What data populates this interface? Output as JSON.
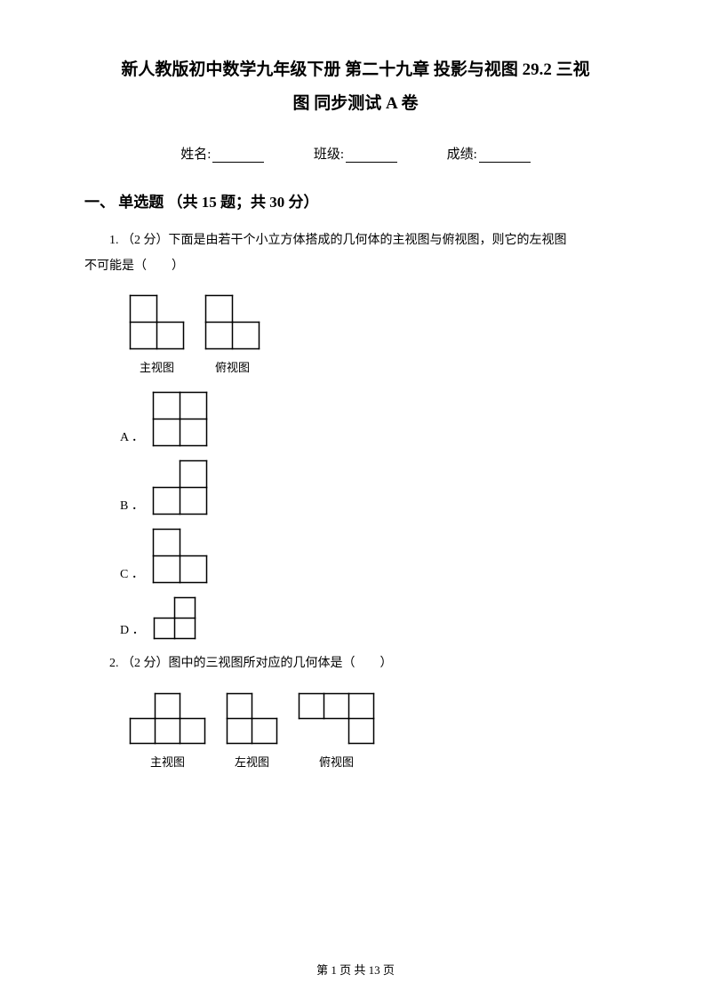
{
  "colors": {
    "text": "#000000",
    "bg": "#ffffff",
    "line": "#000000"
  },
  "title": {
    "line1": "新人教版初中数学九年级下册 第二十九章 投影与视图 29.2 三视",
    "line2": "图 同步测试 A 卷"
  },
  "info": {
    "name_label": "姓名:",
    "class_label": "班级:",
    "score_label": "成绩:"
  },
  "section": {
    "heading": "一、 单选题 （共 15 题；共 30 分）"
  },
  "q1": {
    "text_a": "1. （2 分）下面是由若干个小立方体搭成的几何体的主视图与俯视图，则它的左视图",
    "text_b": "不可能是（　　）",
    "front_label": "主视图",
    "top_label": "俯视图",
    "opts": {
      "A": "A ．",
      "B": "B ．",
      "C": "C ．",
      "D": "D ．"
    }
  },
  "q2": {
    "text": "2. （2 分）图中的三视图所对应的几何体是（　　）",
    "front_label": "主视图",
    "left_label": "左视图",
    "top_label": "俯视图"
  },
  "footer": {
    "text": "第 1 页 共 13 页"
  },
  "diagrams": {
    "unit": 30,
    "stroke": "#000000",
    "stroke_width": 1.5,
    "q1_front": {
      "w": 2,
      "h": 2,
      "cells": [
        [
          0,
          0
        ],
        [
          0,
          1
        ],
        [
          1,
          1
        ]
      ]
    },
    "q1_top": {
      "w": 2,
      "h": 2,
      "cells": [
        [
          0,
          0
        ],
        [
          0,
          1
        ],
        [
          1,
          1
        ]
      ]
    },
    "q1_A": {
      "w": 2,
      "h": 2,
      "cells": [
        [
          0,
          0
        ],
        [
          1,
          0
        ],
        [
          0,
          1
        ],
        [
          1,
          1
        ]
      ]
    },
    "q1_B": {
      "w": 2,
      "h": 2,
      "cells": [
        [
          1,
          0
        ],
        [
          0,
          1
        ],
        [
          1,
          1
        ]
      ]
    },
    "q1_C": {
      "w": 2,
      "h": 2,
      "cells": [
        [
          0,
          0
        ],
        [
          0,
          1
        ],
        [
          1,
          1
        ]
      ]
    },
    "q1_D_unit": 23,
    "q1_D": {
      "w": 2,
      "h": 2,
      "cells": [
        [
          1,
          0
        ],
        [
          0,
          1
        ],
        [
          1,
          1
        ]
      ]
    },
    "q2_unit": 28,
    "q2_front": {
      "w": 3,
      "h": 2,
      "cells": [
        [
          1,
          0
        ],
        [
          0,
          1
        ],
        [
          1,
          1
        ],
        [
          2,
          1
        ]
      ]
    },
    "q2_left": {
      "w": 2,
      "h": 2,
      "cells": [
        [
          0,
          0
        ],
        [
          0,
          1
        ],
        [
          1,
          1
        ]
      ]
    },
    "q2_top": {
      "w": 3,
      "h": 2,
      "cells": [
        [
          0,
          0
        ],
        [
          1,
          0
        ],
        [
          2,
          0
        ],
        [
          2,
          1
        ]
      ]
    }
  }
}
